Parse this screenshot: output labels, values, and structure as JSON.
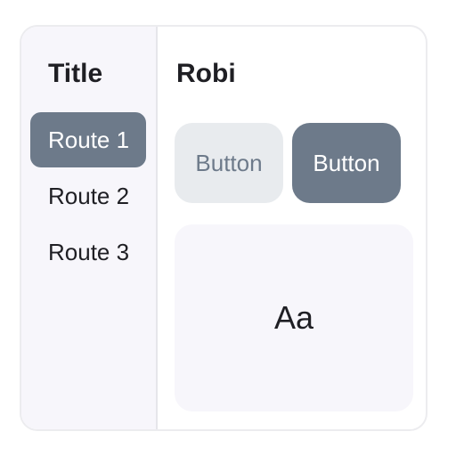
{
  "sidebar": {
    "title": "Title",
    "routes": [
      {
        "label": "Route 1",
        "active": true
      },
      {
        "label": "Route 2",
        "active": false
      },
      {
        "label": "Route 3",
        "active": false
      }
    ]
  },
  "main": {
    "title": "Robi",
    "buttons": [
      {
        "label": "Button",
        "variant": "secondary"
      },
      {
        "label": "Button",
        "variant": "primary"
      }
    ],
    "card": {
      "text": "Aa"
    }
  },
  "colors": {
    "accent": "#6d7a8a",
    "sidebar_bg": "#f7f6fb",
    "secondary_button_bg": "#e8ebee",
    "text": "#1f1f24"
  }
}
